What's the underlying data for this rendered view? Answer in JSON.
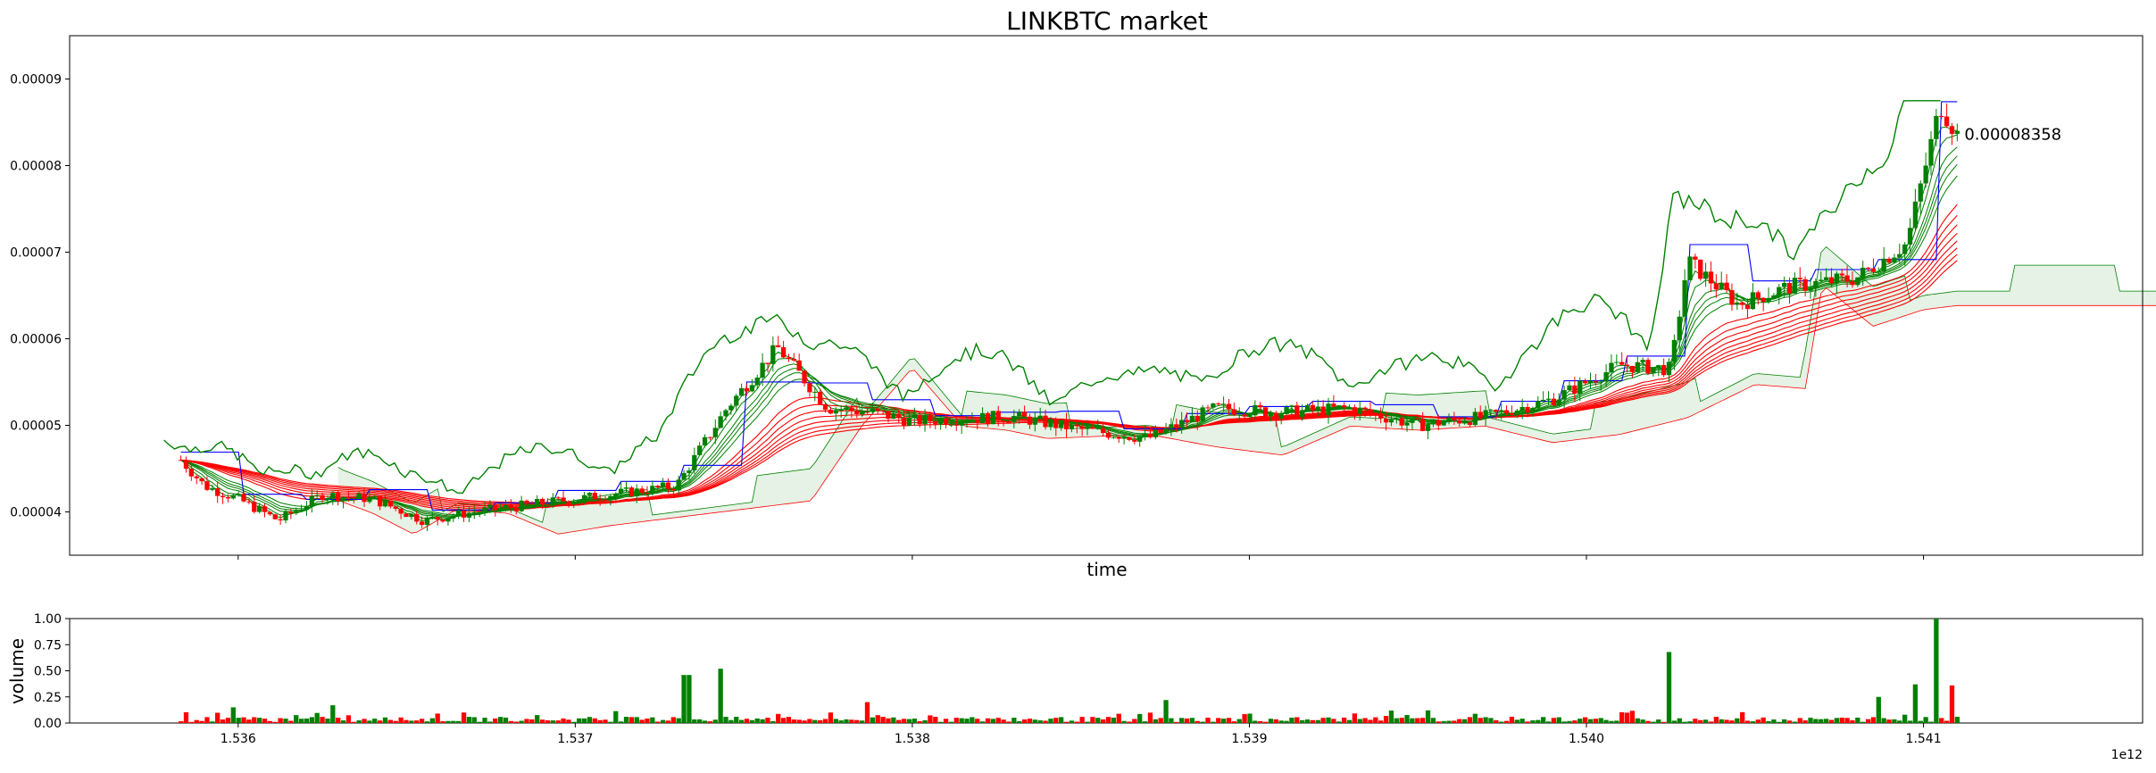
{
  "chart_data": [
    {
      "type": "candlestick",
      "title": "LINKBTC market",
      "xlabel": "time",
      "ylabel": "",
      "xlim": [
        1.5355,
        1.54165
      ],
      "ylim": [
        3.5e-05,
        9.5e-05
      ],
      "x_ticks": [
        1.536,
        1.537,
        1.538,
        1.539,
        1.54,
        1.541
      ],
      "x_tick_labels": [
        "1.536",
        "1.537",
        "1.538",
        "1.539",
        "1.540",
        "1.541"
      ],
      "x_scale_label": "1e12",
      "y_ticks": [
        4e-05,
        5e-05,
        6e-05,
        7e-05,
        8e-05,
        9e-05
      ],
      "y_tick_labels": [
        "0.00004",
        "0.00005",
        "0.00006",
        "0.00007",
        "0.00008",
        "0.00009"
      ],
      "last_price_label": "0.00008358",
      "up_color": "#008000",
      "down_color": "#ff0000",
      "price_anchors": {
        "x": [
          1.53583,
          1.5359,
          1.536,
          1.53612,
          1.53625,
          1.5364,
          1.53655,
          1.5367,
          1.5369,
          1.5371,
          1.5373,
          1.53745,
          1.5376,
          1.53775,
          1.53788,
          1.538,
          1.5383,
          1.5385,
          1.5387,
          1.5389,
          1.5391,
          1.5393,
          1.5395,
          1.5397,
          1.5399,
          1.5401,
          1.54025,
          1.5403,
          1.54045,
          1.5406,
          1.5408,
          1.54095,
          1.54105,
          1.5411
        ],
        "close": [
          4.6e-05,
          4.3e-05,
          4.15e-05,
          3.9e-05,
          4.2e-05,
          4.15e-05,
          3.9e-05,
          4e-05,
          4.1e-05,
          4.2e-05,
          4.3e-05,
          5.2e-05,
          5.9e-05,
          5.2e-05,
          5.15e-05,
          5.05e-05,
          5.1e-05,
          4.95e-05,
          4.85e-05,
          5.2e-05,
          5.15e-05,
          5.2e-05,
          5e-05,
          5.1e-05,
          5.3e-05,
          5.7e-05,
          5.65e-05,
          6.9e-05,
          6.4e-05,
          6.6e-05,
          6.7e-05,
          7.1e-05,
          8.7e-05,
          8.36e-05
        ]
      },
      "volume_spikes": {
        "x": [
          1.53598,
          1.53628,
          1.53733,
          1.53743,
          1.53787,
          1.53875,
          1.54025,
          1.54087,
          1.54097,
          1.54104,
          1.54108
        ],
        "value": [
          0.15,
          0.17,
          0.46,
          0.52,
          0.2,
          0.22,
          0.68,
          0.25,
          0.37,
          1.0,
          0.36
        ]
      },
      "indicators": [
        {
          "name": "upper-envelope",
          "color": "#008000"
        },
        {
          "name": "blue-line",
          "color": "#0000ff"
        },
        {
          "name": "green-ribbon",
          "color": "#008000"
        },
        {
          "name": "red-ribbon",
          "color": "#ff0000"
        },
        {
          "name": "cloud",
          "color": "#008000"
        }
      ]
    },
    {
      "type": "bar",
      "title": "",
      "xlabel": "",
      "ylabel": "volume",
      "ylim": [
        0,
        1
      ],
      "y_ticks": [
        0,
        0.25,
        0.5,
        0.75,
        1.0
      ],
      "y_tick_labels": [
        "0.00",
        "0.25",
        "0.50",
        "0.75",
        "1.00"
      ]
    }
  ]
}
